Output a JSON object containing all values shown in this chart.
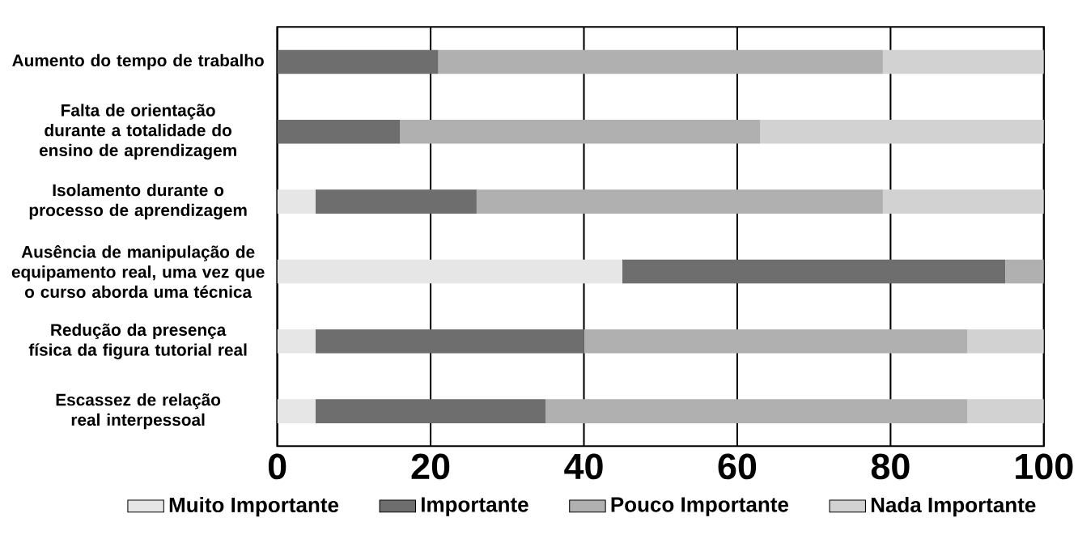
{
  "chart_data": {
    "type": "bar",
    "orientation": "horizontal",
    "stacked": true,
    "categories": [
      "Aumento do tempo de trabalho",
      "Falta de orientação durante a totalidade do ensino de aprendizagem",
      "Isolamento durante o processo de aprendizagem",
      "Ausência de manipulação de equipamento real, uma vez que o curso aborda uma técnica",
      "Redução da presença física da figura tutorial real",
      "Escassez de relação real interpessoal"
    ],
    "series": [
      {
        "name": "Muito Importante",
        "color": "#e6e6e6",
        "values": [
          0,
          0,
          5,
          45,
          5,
          5
        ]
      },
      {
        "name": "Importante",
        "color": "#6e6e6e",
        "values": [
          21,
          16,
          21,
          50,
          35,
          30
        ]
      },
      {
        "name": "Pouco Importante",
        "color": "#b0b0b0",
        "values": [
          58,
          47,
          53,
          5,
          50,
          55
        ]
      },
      {
        "name": "Nada Importante",
        "color": "#d2d2d2",
        "values": [
          21,
          37,
          21,
          0,
          10,
          10
        ]
      }
    ],
    "xlim": [
      0,
      100
    ],
    "xticks": [
      0,
      20,
      40,
      60,
      80,
      100
    ],
    "grid": "x",
    "legend": "bottom"
  }
}
